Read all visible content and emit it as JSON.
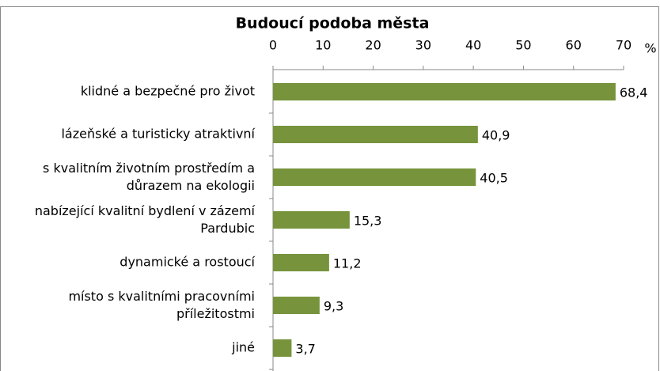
{
  "chart_data": {
    "type": "bar",
    "orientation": "horizontal",
    "title": "Budoucí podoba města",
    "x_unit": "%",
    "categories": [
      "klidné a bezpečné pro život",
      "lázeňské a turisticky atraktivní",
      "s kvalitním životním prostředím a\ndůrazem na ekologii",
      "nabízející kvalitní bydlení v zázemí\nPardubic",
      "dynamické a rostoucí",
      "místo s kvalitními pracovními\npříležitostmi",
      "jiné"
    ],
    "values": [
      68.4,
      40.9,
      40.5,
      15.3,
      11.2,
      9.3,
      3.7
    ],
    "value_labels": [
      "68,4",
      "40,9",
      "40,5",
      "15,3",
      "11,2",
      "9,3",
      "3,7"
    ],
    "color": "#77933c",
    "xlim": [
      0,
      70
    ],
    "xticks": [
      0,
      10,
      20,
      30,
      40,
      50,
      60,
      70
    ],
    "grid": false
  }
}
